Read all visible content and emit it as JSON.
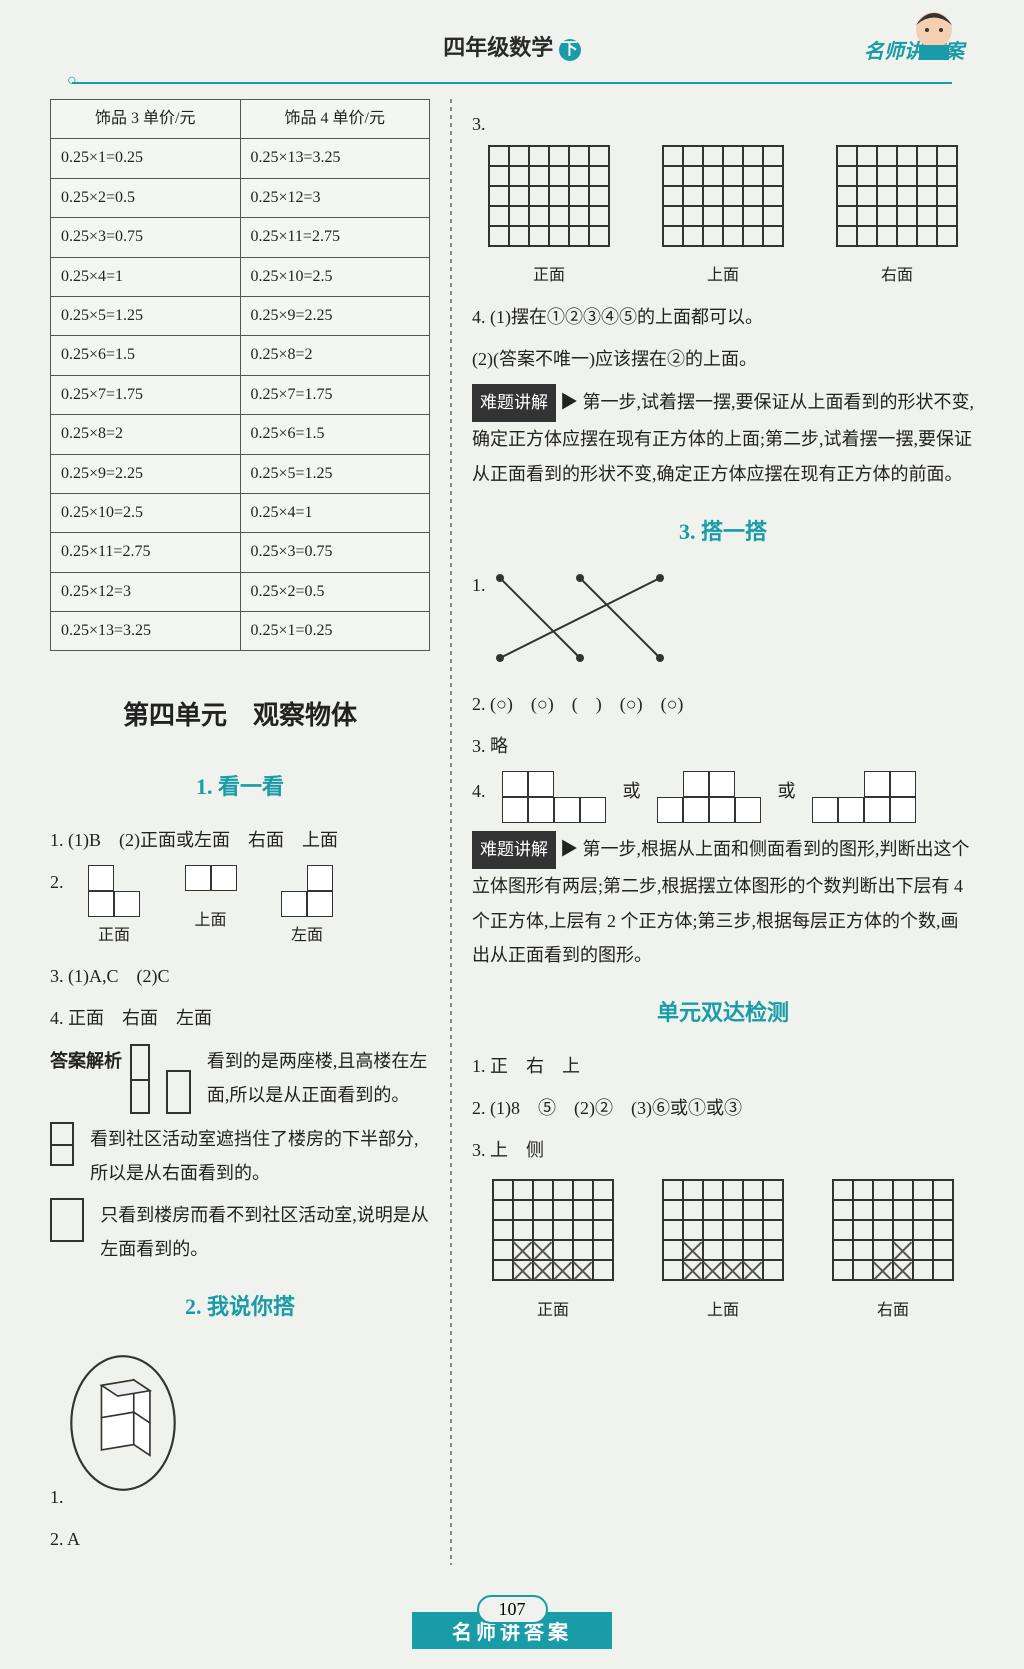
{
  "header": {
    "title_prefix": "四年级数学",
    "xia": "下",
    "brand": "名师讲答案"
  },
  "price_table": {
    "col1_header": "饰品 3 单价/元",
    "col2_header": "饰品 4 单价/元",
    "col1": [
      "0.25×1=0.25",
      "0.25×2=0.5",
      "0.25×3=0.75",
      "0.25×4=1",
      "0.25×5=1.25",
      "0.25×6=1.5",
      "0.25×7=1.75",
      "0.25×8=2",
      "0.25×9=2.25",
      "0.25×10=2.5",
      "0.25×11=2.75",
      "0.25×12=3",
      "0.25×13=3.25"
    ],
    "col2": [
      "0.25×13=3.25",
      "0.25×12=3",
      "0.25×11=2.75",
      "0.25×10=2.5",
      "0.25×9=2.25",
      "0.25×8=2",
      "0.25×7=1.75",
      "0.25×6=1.5",
      "0.25×5=1.25",
      "0.25×4=1",
      "0.25×3=0.75",
      "0.25×2=0.5",
      "0.25×1=0.25"
    ]
  },
  "unit_title": "第四单元　观察物体",
  "sec1": {
    "title": "1. 看一看",
    "q1": "1. (1)B　(2)正面或左面　右面　上面",
    "q2num": "2.",
    "labels": {
      "front": "正面",
      "top": "上面",
      "left": "左面",
      "right": "右面"
    },
    "q3": "3. (1)A,C　(2)C",
    "q4": "4. 正面　右面　左面",
    "ans_label": "答案解析",
    "ans1": "看到的是两座楼,且高楼在左面,所以是从正面看到的。",
    "ans2": "看到社区活动室遮挡住了楼房的下半部分,所以是从右面看到的。",
    "ans3": "只看到楼房而看不到社区活动室,说明是从左面看到的。"
  },
  "sec2": {
    "title": "2. 我说你搭",
    "q1": "1.",
    "q2": "2. A"
  },
  "right": {
    "q3": "3.",
    "labels": {
      "front": "正面",
      "top": "上面",
      "right": "右面"
    },
    "q4_1": "4. (1)摆在①②③④⑤的上面都可以。",
    "q4_2": "(2)(答案不唯一)应该摆在②的上面。",
    "hard_label": "难题讲解",
    "hard1": "第一步,试着摆一摆,要保证从上面看到的形状不变,确定正方体应摆在现有正方体的上面;第二步,试着摆一摆,要保证从正面看到的形状不变,确定正方体应摆在现有正方体的前面。"
  },
  "sec3": {
    "title": "3. 搭一搭",
    "q1": "1.",
    "q2": "2. (○)　(○)　(　)　(○)　(○)",
    "q3": "3. 略",
    "q4_num": "4.",
    "q4_or": "或",
    "hard_label": "难题讲解",
    "hard2": "第一步,根据从上面和侧面看到的图形,判断出这个立体图形有两层;第二步,根据摆立体图形的个数判断出下层有 4 个正方体,上层有 2 个正方体;第三步,根据每层正方体的个数,画出从正面看到的图形。"
  },
  "sec4": {
    "title": "单元双达检测",
    "q1": "1. 正　右　上",
    "q2": "2. (1)8　⑤　(2)②　(3)⑥或①或③",
    "q3": "3. 上　侧",
    "labels": {
      "front": "正面",
      "top": "上面",
      "right": "右面"
    }
  },
  "footer": {
    "page": "107",
    "bar": "名师讲答案"
  },
  "colors": {
    "accent": "#1a9ba8",
    "text": "#222222",
    "bg": "#f0f2ed"
  }
}
